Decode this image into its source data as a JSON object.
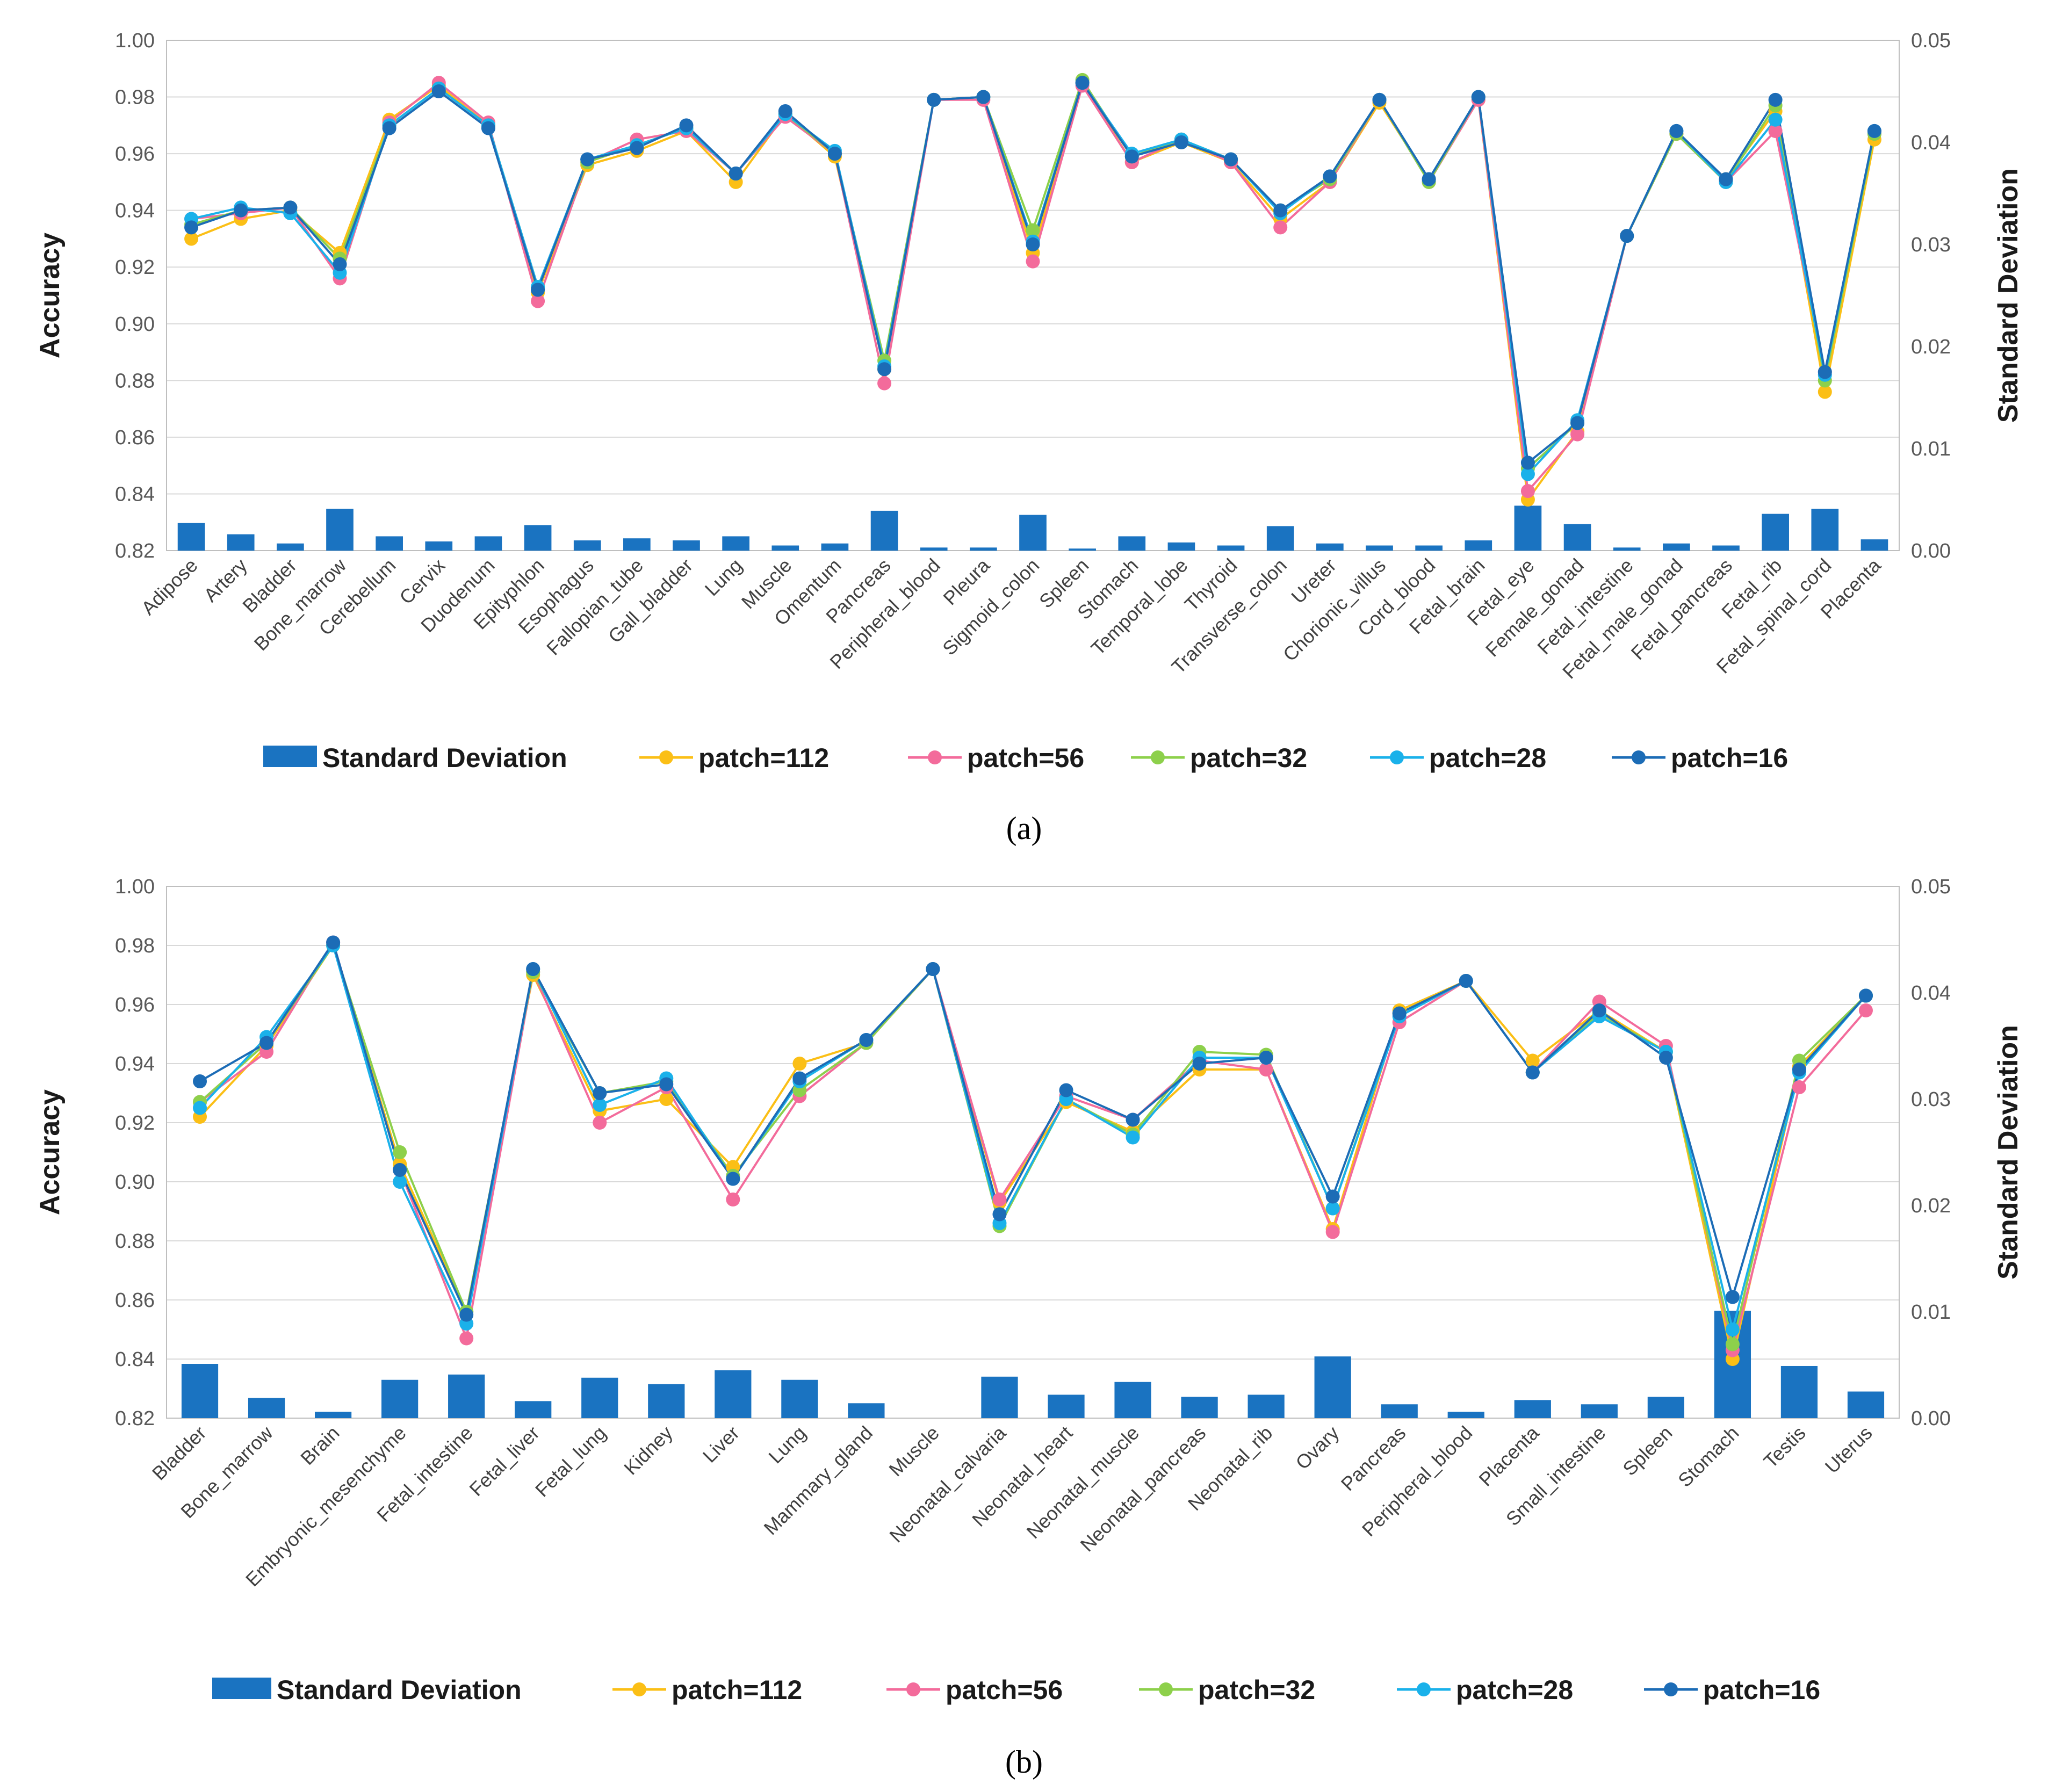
{
  "figure": {
    "panel_labels": [
      "(a)",
      "(b)"
    ]
  },
  "chart_data": [
    {
      "type": "bar+line",
      "panel": "a",
      "xlabel": "",
      "ylabel": "Accuracy",
      "y2label": "Standard Deviation",
      "ylim": [
        0.82,
        1.0
      ],
      "y2lim": [
        0.0,
        0.05
      ],
      "yticks": [
        "0.82",
        "0.84",
        "0.86",
        "0.88",
        "0.90",
        "0.92",
        "0.94",
        "0.96",
        "0.98",
        "1.00"
      ],
      "y2ticks": [
        "0.00",
        "0.01",
        "0.02",
        "0.03",
        "0.04",
        "0.05"
      ],
      "legend_position": "bottom",
      "categories": [
        "Adipose",
        "Artery",
        "Bladder",
        "Bone_marrow",
        "Cerebellum",
        "Cervix",
        "Duodenum",
        "Epityphlon",
        "Esophagus",
        "Fallopian_tube",
        "Gall_bladder",
        "Lung",
        "Muscle",
        "Omentum",
        "Pancreas",
        "Peripheral_blood",
        "Pleura",
        "Sigmoid_colon",
        "Spleen",
        "Stomach",
        "Temporal_lobe",
        "Thyroid",
        "Transverse_colon",
        "Ureter",
        "Chorionic_villus",
        "Cord_blood",
        "Fetal_brain",
        "Fetal_eye",
        "Female_gonad",
        "Fetal_intestine",
        "Fetal_male_gonad",
        "Fetal_pancreas",
        "Fetal_rib",
        "Fetal_spinal_cord",
        "Placenta"
      ],
      "bars": {
        "name": "Standard Deviation",
        "color": "#1a73c1",
        "values": [
          0.0027,
          0.0016,
          0.0007,
          0.0041,
          0.0014,
          0.0009,
          0.0014,
          0.0025,
          0.001,
          0.0012,
          0.001,
          0.0014,
          0.0005,
          0.0007,
          0.0039,
          0.0003,
          0.0003,
          0.0035,
          0.0002,
          0.0014,
          0.0008,
          0.0005,
          0.0024,
          0.0007,
          0.0005,
          0.0005,
          0.001,
          0.0044,
          0.0026,
          0.0003,
          0.0007,
          0.0005,
          0.0036,
          0.0041,
          0.0011
        ]
      },
      "series": [
        {
          "name": "patch=112",
          "color": "#fbbf16",
          "values": [
            0.93,
            0.937,
            0.94,
            0.925,
            0.972,
            0.984,
            0.97,
            0.911,
            0.956,
            0.961,
            0.968,
            0.95,
            0.974,
            0.959,
            0.884,
            0.979,
            0.98,
            0.925,
            0.985,
            0.957,
            0.964,
            0.957,
            0.937,
            0.95,
            0.978,
            0.951,
            0.979,
            0.838,
            0.862,
            0.931,
            0.967,
            0.951,
            0.975,
            0.876,
            0.965
          ]
        },
        {
          "name": "patch=56",
          "color": "#f36b9b",
          "values": [
            0.937,
            0.939,
            0.941,
            0.916,
            0.971,
            0.985,
            0.971,
            0.908,
            0.957,
            0.965,
            0.968,
            0.953,
            0.973,
            0.96,
            0.879,
            0.979,
            0.979,
            0.922,
            0.984,
            0.957,
            0.965,
            0.957,
            0.934,
            0.95,
            0.979,
            0.95,
            0.979,
            0.841,
            0.861,
            0.931,
            0.967,
            0.95,
            0.968,
            0.883,
            0.967
          ]
        },
        {
          "name": "patch=32",
          "color": "#8dd04b",
          "values": [
            0.935,
            0.94,
            0.941,
            0.923,
            0.97,
            0.983,
            0.97,
            0.913,
            0.957,
            0.963,
            0.969,
            0.953,
            0.974,
            0.96,
            0.887,
            0.979,
            0.98,
            0.933,
            0.986,
            0.959,
            0.965,
            0.958,
            0.94,
            0.951,
            0.979,
            0.95,
            0.98,
            0.849,
            0.865,
            0.931,
            0.967,
            0.95,
            0.977,
            0.88,
            0.967
          ]
        },
        {
          "name": "patch=28",
          "color": "#1ab1ea",
          "values": [
            0.937,
            0.941,
            0.939,
            0.918,
            0.97,
            0.983,
            0.97,
            0.913,
            0.958,
            0.963,
            0.969,
            0.953,
            0.974,
            0.961,
            0.885,
            0.979,
            0.98,
            0.929,
            0.985,
            0.96,
            0.965,
            0.958,
            0.939,
            0.952,
            0.979,
            0.951,
            0.98,
            0.847,
            0.866,
            0.931,
            0.968,
            0.95,
            0.972,
            0.882,
            0.968
          ]
        },
        {
          "name": "patch=16",
          "color": "#1c6cb6",
          "values": [
            0.934,
            0.94,
            0.941,
            0.921,
            0.969,
            0.982,
            0.969,
            0.912,
            0.958,
            0.962,
            0.97,
            0.953,
            0.975,
            0.96,
            0.884,
            0.979,
            0.98,
            0.928,
            0.985,
            0.959,
            0.964,
            0.958,
            0.94,
            0.952,
            0.979,
            0.951,
            0.98,
            0.851,
            0.865,
            0.931,
            0.968,
            0.951,
            0.979,
            0.883,
            0.968
          ]
        }
      ]
    },
    {
      "type": "bar+line",
      "panel": "b",
      "xlabel": "",
      "ylabel": "Accuracy",
      "y2label": "Standard Deviation",
      "ylim": [
        0.82,
        1.0
      ],
      "y2lim": [
        0.0,
        0.05
      ],
      "yticks": [
        "0.82",
        "0.84",
        "0.86",
        "0.88",
        "0.90",
        "0.92",
        "0.94",
        "0.96",
        "0.98",
        "1.00"
      ],
      "y2ticks": [
        "0.00",
        "0.01",
        "0.02",
        "0.03",
        "0.04",
        "0.05"
      ],
      "legend_position": "bottom",
      "categories": [
        "Bladder",
        "Bone_marrow",
        "Brain",
        "Embryonic_mesenchyme",
        "Fetal_intestine",
        "Fetal_liver",
        "Fetal_lung",
        "Kidney",
        "Liver",
        "Lung",
        "Mammary_gland",
        "Muscle",
        "Neonatal_calvaria",
        "Neonatal_heart",
        "Neonatal_muscle",
        "Neonatal_pancreas",
        "Neonatal_rib",
        "Ovary",
        "Pancreas",
        "Peripheral_blood",
        "Placenta",
        "Small_intestine",
        "Spleen",
        "Stomach",
        "Testis",
        "Uterus"
      ],
      "bars": {
        "name": "Standard Deviation",
        "color": "#1a73c1",
        "values": [
          0.0051,
          0.0019,
          0.0006,
          0.0036,
          0.0041,
          0.0016,
          0.0038,
          0.0032,
          0.0045,
          0.0036,
          0.0014,
          0.0,
          0.0039,
          0.0022,
          0.0034,
          0.002,
          0.0022,
          0.0058,
          0.0013,
          0.0006,
          0.0017,
          0.0013,
          0.002,
          0.0101,
          0.0049,
          0.0025
        ]
      },
      "series": [
        {
          "name": "patch=112",
          "color": "#fbbf16",
          "values": [
            0.922,
            0.946,
            0.98,
            0.906,
            0.856,
            0.97,
            0.924,
            0.928,
            0.905,
            0.94,
            0.947,
            0.972,
            0.893,
            0.927,
            0.917,
            0.938,
            0.938,
            0.884,
            0.958,
            0.968,
            0.941,
            0.958,
            0.944,
            0.84,
            0.939,
            0.963
          ]
        },
        {
          "name": "patch=56",
          "color": "#f36b9b",
          "values": [
            0.927,
            0.944,
            0.981,
            0.904,
            0.847,
            0.971,
            0.92,
            0.932,
            0.894,
            0.929,
            0.947,
            0.972,
            0.894,
            0.929,
            0.921,
            0.941,
            0.938,
            0.883,
            0.954,
            0.968,
            0.937,
            0.961,
            0.946,
            0.843,
            0.932,
            0.958
          ]
        },
        {
          "name": "patch=32",
          "color": "#8dd04b",
          "values": [
            0.927,
            0.947,
            0.98,
            0.91,
            0.856,
            0.971,
            0.93,
            0.934,
            0.902,
            0.931,
            0.947,
            0.972,
            0.885,
            0.928,
            0.916,
            0.944,
            0.943,
            0.891,
            0.957,
            0.968,
            0.937,
            0.957,
            0.944,
            0.845,
            0.941,
            0.963
          ]
        },
        {
          "name": "patch=28",
          "color": "#1ab1ea",
          "values": [
            0.925,
            0.949,
            0.98,
            0.9,
            0.852,
            0.972,
            0.926,
            0.935,
            0.901,
            0.934,
            0.948,
            0.972,
            0.886,
            0.928,
            0.915,
            0.942,
            0.942,
            0.891,
            0.956,
            0.968,
            0.937,
            0.956,
            0.944,
            0.85,
            0.937,
            0.963
          ]
        },
        {
          "name": "patch=16",
          "color": "#1c6cb6",
          "values": [
            0.934,
            0.947,
            0.981,
            0.904,
            0.855,
            0.972,
            0.93,
            0.933,
            0.901,
            0.935,
            0.948,
            0.972,
            0.889,
            0.931,
            0.921,
            0.94,
            0.942,
            0.895,
            0.957,
            0.968,
            0.937,
            0.958,
            0.942,
            0.861,
            0.938,
            0.963
          ]
        }
      ]
    }
  ]
}
